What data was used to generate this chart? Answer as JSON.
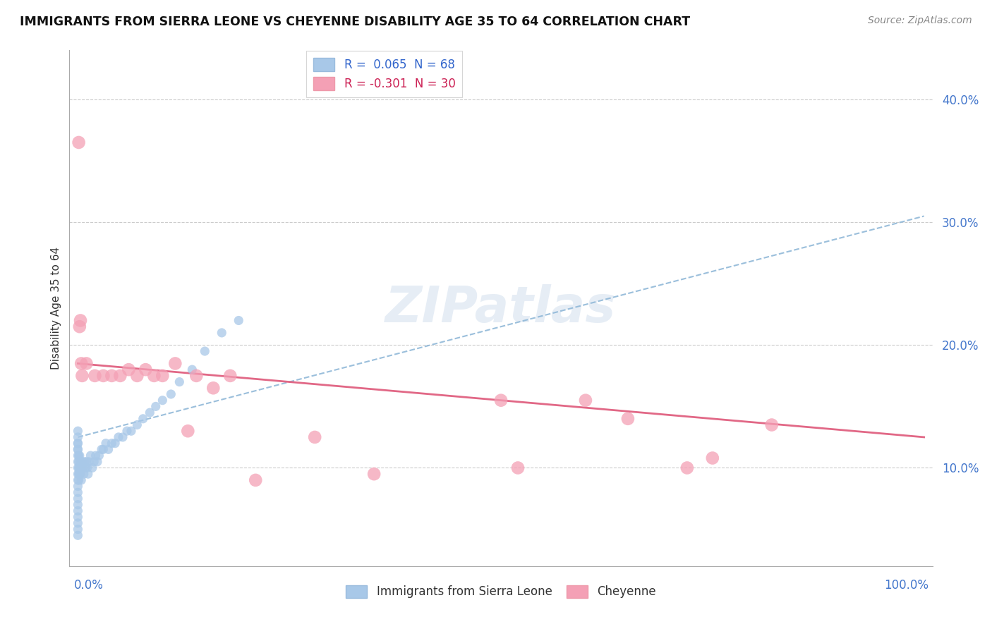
{
  "title": "IMMIGRANTS FROM SIERRA LEONE VS CHEYENNE DISABILITY AGE 35 TO 64 CORRELATION CHART",
  "source": "Source: ZipAtlas.com",
  "ylabel": "Disability Age 35 to 64",
  "y_ticks": [
    0.1,
    0.2,
    0.3,
    0.4
  ],
  "y_tick_labels": [
    "10.0%",
    "20.0%",
    "30.0%",
    "40.0%"
  ],
  "xlim": [
    -0.01,
    1.01
  ],
  "ylim": [
    0.02,
    0.44
  ],
  "legend_blue_label": "R =  0.065  N = 68",
  "legend_pink_label": "R = -0.301  N = 30",
  "legend_bottom_blue": "Immigrants from Sierra Leone",
  "legend_bottom_pink": "Cheyenne",
  "blue_color": "#a8c8e8",
  "pink_color": "#f4a0b5",
  "blue_line_color": "#90b8d8",
  "pink_line_color": "#e06080",
  "blue_line_x": [
    0.0,
    1.0
  ],
  "blue_line_y": [
    0.125,
    0.305
  ],
  "pink_line_x": [
    0.0,
    1.0
  ],
  "pink_line_y": [
    0.185,
    0.125
  ],
  "blue_points_x": [
    0.0,
    0.0,
    0.0,
    0.0,
    0.0,
    0.0,
    0.0,
    0.0,
    0.0,
    0.0,
    0.0,
    0.0,
    0.0,
    0.0,
    0.0,
    0.0,
    0.0,
    0.0,
    0.0,
    0.0,
    0.001,
    0.001,
    0.001,
    0.001,
    0.001,
    0.002,
    0.002,
    0.002,
    0.003,
    0.003,
    0.004,
    0.004,
    0.005,
    0.006,
    0.007,
    0.008,
    0.009,
    0.01,
    0.011,
    0.012,
    0.013,
    0.015,
    0.017,
    0.019,
    0.021,
    0.023,
    0.025,
    0.028,
    0.03,
    0.033,
    0.036,
    0.04,
    0.044,
    0.048,
    0.053,
    0.058,
    0.063,
    0.07,
    0.077,
    0.085,
    0.092,
    0.1,
    0.11,
    0.12,
    0.135,
    0.15,
    0.17,
    0.19
  ],
  "blue_points_y": [
    0.115,
    0.12,
    0.125,
    0.13,
    0.115,
    0.12,
    0.105,
    0.11,
    0.095,
    0.1,
    0.09,
    0.085,
    0.08,
    0.075,
    0.07,
    0.065,
    0.06,
    0.055,
    0.05,
    0.045,
    0.11,
    0.105,
    0.1,
    0.095,
    0.09,
    0.11,
    0.1,
    0.095,
    0.105,
    0.095,
    0.1,
    0.09,
    0.105,
    0.1,
    0.095,
    0.105,
    0.1,
    0.105,
    0.1,
    0.095,
    0.105,
    0.11,
    0.1,
    0.105,
    0.11,
    0.105,
    0.11,
    0.115,
    0.115,
    0.12,
    0.115,
    0.12,
    0.12,
    0.125,
    0.125,
    0.13,
    0.13,
    0.135,
    0.14,
    0.145,
    0.15,
    0.155,
    0.16,
    0.17,
    0.18,
    0.195,
    0.21,
    0.22
  ],
  "pink_points_x": [
    0.001,
    0.002,
    0.003,
    0.004,
    0.005,
    0.01,
    0.02,
    0.03,
    0.04,
    0.05,
    0.06,
    0.07,
    0.08,
    0.09,
    0.1,
    0.115,
    0.13,
    0.14,
    0.16,
    0.18,
    0.21,
    0.28,
    0.35,
    0.5,
    0.52,
    0.6,
    0.65,
    0.72,
    0.75,
    0.82
  ],
  "pink_points_y": [
    0.365,
    0.215,
    0.22,
    0.185,
    0.175,
    0.185,
    0.175,
    0.175,
    0.175,
    0.175,
    0.18,
    0.175,
    0.18,
    0.175,
    0.175,
    0.185,
    0.13,
    0.175,
    0.165,
    0.175,
    0.09,
    0.125,
    0.095,
    0.155,
    0.1,
    0.155,
    0.14,
    0.1,
    0.108,
    0.135
  ]
}
